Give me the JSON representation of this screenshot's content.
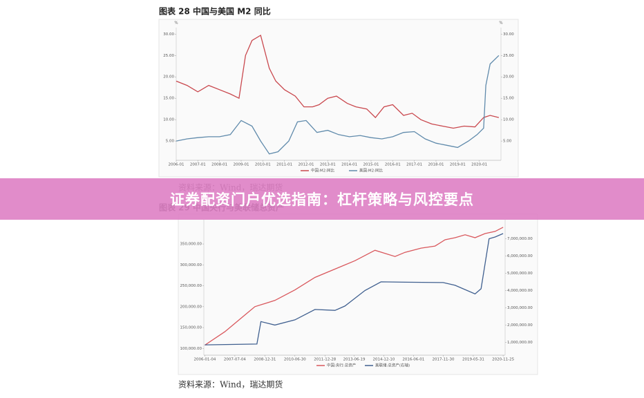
{
  "banner": {
    "text": "证券配资门户优选指南：杠杆策略与风控要点"
  },
  "chart_data": [
    {
      "type": "line",
      "title": "图表  28  中国与美国 M2 同比",
      "source": "资料来源：Wind，瑞达期货",
      "y_unit": "%",
      "y2_unit": "%",
      "xlim": [
        2006,
        2021
      ],
      "ylim": [
        0.5,
        31.5
      ],
      "y2lim": [
        0.5,
        31.5
      ],
      "xticks": [
        {
          "value": 2006,
          "label": "2006-01"
        },
        {
          "value": 2007,
          "label": "2007-01"
        },
        {
          "value": 2008,
          "label": "2008-01"
        },
        {
          "value": 2009,
          "label": "2009-01"
        },
        {
          "value": 2010,
          "label": "2010-01"
        },
        {
          "value": 2011,
          "label": "2011-01"
        },
        {
          "value": 2012,
          "label": "2012-01"
        },
        {
          "value": 2013,
          "label": "2013-01"
        },
        {
          "value": 2014,
          "label": "2014-01"
        },
        {
          "value": 2015,
          "label": "2015-01"
        },
        {
          "value": 2016,
          "label": "2016-01"
        },
        {
          "value": 2017,
          "label": "2017-01"
        },
        {
          "value": 2018,
          "label": "2018-01"
        },
        {
          "value": 2019,
          "label": "2019-01"
        },
        {
          "value": 2020,
          "label": "2020-01"
        }
      ],
      "yticks": [
        {
          "value": 5,
          "label": "5.00"
        },
        {
          "value": 10,
          "label": "10.00"
        },
        {
          "value": 15,
          "label": "15.00"
        },
        {
          "value": 20,
          "label": "20.00"
        },
        {
          "value": 25,
          "label": "25.00"
        },
        {
          "value": 30,
          "label": "30.00"
        }
      ],
      "y2ticks": [
        {
          "value": 5,
          "label": "5.00"
        },
        {
          "value": 10,
          "label": "10.00"
        },
        {
          "value": 15,
          "label": "15.00"
        },
        {
          "value": 20,
          "label": "20.00"
        },
        {
          "value": 25,
          "label": "25.00"
        },
        {
          "value": 30,
          "label": "30.00"
        }
      ],
      "series": [
        {
          "name": "中国:M2:同比",
          "color": "#c9474d",
          "x": [
            2006.0,
            2006.5,
            2007.0,
            2007.5,
            2008.0,
            2008.5,
            2008.9,
            2009.2,
            2009.5,
            2009.9,
            2010.3,
            2010.6,
            2011.0,
            2011.5,
            2011.9,
            2012.3,
            2012.6,
            2013.0,
            2013.4,
            2013.9,
            2014.3,
            2014.8,
            2015.2,
            2015.6,
            2016.0,
            2016.5,
            2016.9,
            2017.3,
            2017.8,
            2018.3,
            2018.8,
            2019.3,
            2019.8,
            2020.2,
            2020.5,
            2020.9
          ],
          "values": [
            19,
            18,
            16.5,
            18,
            17,
            16,
            15,
            25,
            28.5,
            29.7,
            22,
            19,
            17,
            15.5,
            13,
            13,
            13.5,
            15,
            15.5,
            13.8,
            13,
            12.5,
            10.5,
            13,
            13.5,
            11,
            11.5,
            10,
            9,
            8.5,
            8,
            8.5,
            8.3,
            10.5,
            11,
            10.5
          ]
        },
        {
          "name": "美国:M2:同比",
          "color": "#5f8aab",
          "axis": "y2",
          "x": [
            2006.0,
            2006.5,
            2007.0,
            2007.5,
            2008.0,
            2008.5,
            2009.0,
            2009.5,
            2009.9,
            2010.3,
            2010.7,
            2011.2,
            2011.6,
            2012.0,
            2012.5,
            2013.0,
            2013.5,
            2014.0,
            2014.5,
            2015.0,
            2015.5,
            2016.0,
            2016.5,
            2017.0,
            2017.5,
            2018.0,
            2018.5,
            2019.0,
            2019.5,
            2019.9,
            2020.2,
            2020.3,
            2020.5,
            2020.9
          ],
          "values": [
            5,
            5.5,
            5.8,
            6,
            6,
            6.5,
            9.8,
            8.5,
            5,
            2,
            2.5,
            5,
            9.5,
            9.8,
            7,
            7.5,
            6.5,
            6,
            6.3,
            5.8,
            5.5,
            6,
            7,
            7.2,
            5.5,
            4.5,
            4,
            3.5,
            5,
            6.5,
            8,
            18,
            23,
            25
          ]
        }
      ]
    },
    {
      "type": "line",
      "title": "图表  29  中国央行与美联储总资产",
      "source": "资料来源：Wind，瑞达期货",
      "xlim": [
        2005.95,
        2021.0
      ],
      "ylim": [
        84000,
        408000
      ],
      "y2lim": [
        255000,
        8100000
      ],
      "xticks": [
        {
          "value": 2006.0,
          "label": "2006-01-04"
        },
        {
          "value": 2007.5,
          "label": "2007-07-04"
        },
        {
          "value": 2009.0,
          "label": "2008-12-31"
        },
        {
          "value": 2010.5,
          "label": "2010-06-30"
        },
        {
          "value": 2012.0,
          "label": "2011-12-28"
        },
        {
          "value": 2013.46,
          "label": "2013-06-19"
        },
        {
          "value": 2014.94,
          "label": "2014-12-10"
        },
        {
          "value": 2016.42,
          "label": "2016-06-01"
        },
        {
          "value": 2017.91,
          "label": "2017-11-30"
        },
        {
          "value": 2019.41,
          "label": "2019-05-31"
        },
        {
          "value": 2020.9,
          "label": "2020-11-25"
        }
      ],
      "yticks": [
        {
          "value": 100000,
          "label": "100,000.00"
        },
        {
          "value": 150000,
          "label": "150,000.00"
        },
        {
          "value": 200000,
          "label": "200,000.00"
        },
        {
          "value": 250000,
          "label": "250,000.00"
        },
        {
          "value": 300000,
          "label": "300,000.00"
        },
        {
          "value": 350000,
          "label": "350,000.00"
        }
      ],
      "y2ticks": [
        {
          "value": 1000000,
          "label": "1,000,000.00"
        },
        {
          "value": 2000000,
          "label": "2,000,000.00"
        },
        {
          "value": 3000000,
          "label": "3,000,000.00"
        },
        {
          "value": 4000000,
          "label": "4,000,000.00"
        },
        {
          "value": 5000000,
          "label": "5,000,000.00"
        },
        {
          "value": 6000000,
          "label": "6,000,000.00"
        },
        {
          "value": 7000000,
          "label": "7,000,000.00"
        }
      ],
      "series": [
        {
          "name": "中国:央行:总资产",
          "color": "#d9575c",
          "x": [
            2006.0,
            2007.0,
            2008.0,
            2008.5,
            2009.5,
            2010.5,
            2011.5,
            2012.5,
            2013.5,
            2014.5,
            2015.5,
            2016.0,
            2016.8,
            2017.5,
            2018.0,
            2018.5,
            2019.0,
            2019.5,
            2020.0,
            2020.5,
            2020.9
          ],
          "values": [
            108000,
            140000,
            180000,
            200000,
            215000,
            240000,
            270000,
            290000,
            310000,
            335000,
            320000,
            330000,
            340000,
            345000,
            360000,
            365000,
            372000,
            365000,
            375000,
            380000,
            390000
          ]
        },
        {
          "name": "美联储:总资产(右轴)",
          "color": "#3f5f8f",
          "axis": "y2",
          "x": [
            2006.0,
            2008.6,
            2008.8,
            2009.5,
            2010.5,
            2011.5,
            2012.5,
            2013.0,
            2014.0,
            2014.8,
            2016.0,
            2017.9,
            2018.5,
            2019.5,
            2019.8,
            2020.2,
            2020.5,
            2020.9
          ],
          "values": [
            850000,
            900000,
            2200000,
            2000000,
            2300000,
            2900000,
            2850000,
            3100000,
            4000000,
            4500000,
            4480000,
            4460000,
            4300000,
            3800000,
            4100000,
            7000000,
            7100000,
            7300000
          ]
        }
      ]
    }
  ]
}
